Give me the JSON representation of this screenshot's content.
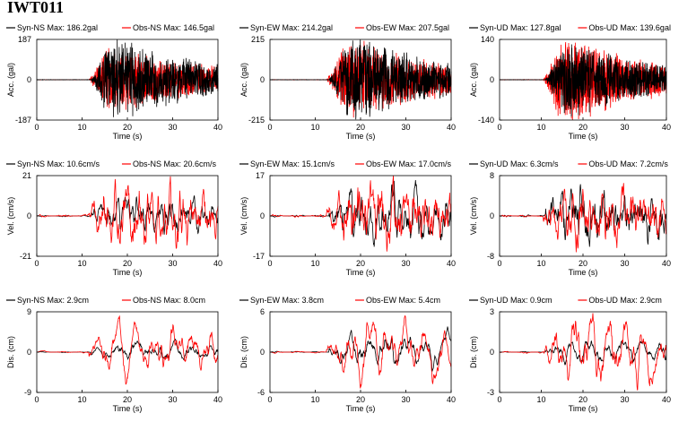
{
  "station": "IWT011",
  "colors": {
    "syn": "#000000",
    "obs": "#ff0000"
  },
  "chart_data": [
    {
      "type": "line",
      "row": "acc",
      "component": "NS",
      "xlabel": "Time (s)",
      "ylabel": "Acc. (gal)",
      "xlim": [
        0,
        40
      ],
      "ylim": [
        -187,
        187
      ],
      "xticks": [
        0,
        10,
        20,
        30,
        40
      ],
      "ytick_labels": [
        "187",
        "0",
        "-187"
      ],
      "series": [
        {
          "name": "Syn-NS",
          "label": "Max: 186.2gal",
          "peak": 186.2
        },
        {
          "name": "Obs-NS",
          "label": "Max: 146.5gal",
          "peak": 146.5
        }
      ],
      "onset": 12
    },
    {
      "type": "line",
      "row": "acc",
      "component": "EW",
      "xlabel": "Time (s)",
      "ylabel": "Acc. (gal)",
      "xlim": [
        0,
        40
      ],
      "ylim": [
        -215,
        215
      ],
      "xticks": [
        0,
        10,
        20,
        30,
        40
      ],
      "ytick_labels": [
        "215",
        "0",
        "-215"
      ],
      "series": [
        {
          "name": "Syn-EW",
          "label": "Max: 214.2gal",
          "peak": 214.2
        },
        {
          "name": "Obs-EW",
          "label": "Max: 207.5gal",
          "peak": 207.5
        }
      ],
      "onset": 13
    },
    {
      "type": "line",
      "row": "acc",
      "component": "UD",
      "xlabel": "Time (s)",
      "ylabel": "Acc. (gal)",
      "xlim": [
        0,
        40
      ],
      "ylim": [
        -140,
        140
      ],
      "xticks": [
        0,
        10,
        20,
        30,
        40
      ],
      "ytick_labels": [
        "140",
        "0",
        "-140"
      ],
      "series": [
        {
          "name": "Syn-UD",
          "label": "Max: 127.8gal",
          "peak": 127.8
        },
        {
          "name": "Obs-UD",
          "label": "Max: 139.6gal",
          "peak": 139.6
        }
      ],
      "onset": 11
    },
    {
      "type": "line",
      "row": "vel",
      "component": "NS",
      "xlabel": "Time (s)",
      "ylabel": "Vel. (cm/s)",
      "xlim": [
        0,
        40
      ],
      "ylim": [
        -21,
        21
      ],
      "xticks": [
        0,
        10,
        20,
        30,
        40
      ],
      "ytick_labels": [
        "21",
        "0",
        "-21"
      ],
      "series": [
        {
          "name": "Syn-NS",
          "label": "Max: 10.6cm/s",
          "peak": 10.6
        },
        {
          "name": "Obs-NS",
          "label": "Max: 20.6cm/s",
          "peak": 20.6
        }
      ],
      "onset": 12
    },
    {
      "type": "line",
      "row": "vel",
      "component": "EW",
      "xlabel": "Time (s)",
      "ylabel": "Vel. (cm/s)",
      "xlim": [
        0,
        40
      ],
      "ylim": [
        -17,
        17
      ],
      "xticks": [
        0,
        10,
        20,
        30,
        40
      ],
      "ytick_labels": [
        "17",
        "0",
        "-17"
      ],
      "series": [
        {
          "name": "Syn-EW",
          "label": "Max: 15.1cm/s",
          "peak": 15.1
        },
        {
          "name": "Obs-EW",
          "label": "Max: 17.0cm/s",
          "peak": 17.0
        }
      ],
      "onset": 13
    },
    {
      "type": "line",
      "row": "vel",
      "component": "UD",
      "xlabel": "Time (s)",
      "ylabel": "Vel. (cm/s)",
      "xlim": [
        0,
        40
      ],
      "ylim": [
        -8,
        8
      ],
      "xticks": [
        0,
        10,
        20,
        30,
        40
      ],
      "ytick_labels": [
        "8",
        "0",
        "-8"
      ],
      "series": [
        {
          "name": "Syn-UD",
          "label": "Max: 6.3cm/s",
          "peak": 6.3
        },
        {
          "name": "Obs-UD",
          "label": "Max: 7.2cm/s",
          "peak": 7.2
        }
      ],
      "onset": 11
    },
    {
      "type": "line",
      "row": "dis",
      "component": "NS",
      "xlabel": "Time (s)",
      "ylabel": "Dis. (cm)",
      "xlim": [
        0,
        40
      ],
      "ylim": [
        -9,
        9
      ],
      "xticks": [
        0,
        10,
        20,
        30,
        40
      ],
      "ytick_labels": [
        "9",
        "0",
        "-9"
      ],
      "series": [
        {
          "name": "Syn-NS",
          "label": "Max: 2.9cm",
          "peak": 2.9
        },
        {
          "name": "Obs-NS",
          "label": "Max: 8.0cm",
          "peak": 8.0
        }
      ],
      "onset": 12
    },
    {
      "type": "line",
      "row": "dis",
      "component": "EW",
      "xlabel": "Time (s)",
      "ylabel": "Dis. (cm)",
      "xlim": [
        0,
        40
      ],
      "ylim": [
        -6,
        6
      ],
      "xticks": [
        0,
        10,
        20,
        30,
        40
      ],
      "ytick_labels": [
        "6",
        "0",
        "-6"
      ],
      "series": [
        {
          "name": "Syn-EW",
          "label": "Max: 3.8cm",
          "peak": 3.8
        },
        {
          "name": "Obs-EW",
          "label": "Max: 5.4cm",
          "peak": 5.4
        }
      ],
      "onset": 13
    },
    {
      "type": "line",
      "row": "dis",
      "component": "UD",
      "xlabel": "Time (s)",
      "ylabel": "Dis. (cm)",
      "xlim": [
        0,
        40
      ],
      "ylim": [
        -3,
        3
      ],
      "xticks": [
        0,
        10,
        20,
        30,
        40
      ],
      "ytick_labels": [
        "3",
        "0",
        "-3"
      ],
      "series": [
        {
          "name": "Syn-UD",
          "label": "Max: 0.9cm",
          "peak": 0.9
        },
        {
          "name": "Obs-UD",
          "label": "Max: 2.9cm",
          "peak": 2.9
        }
      ],
      "onset": 11
    }
  ]
}
